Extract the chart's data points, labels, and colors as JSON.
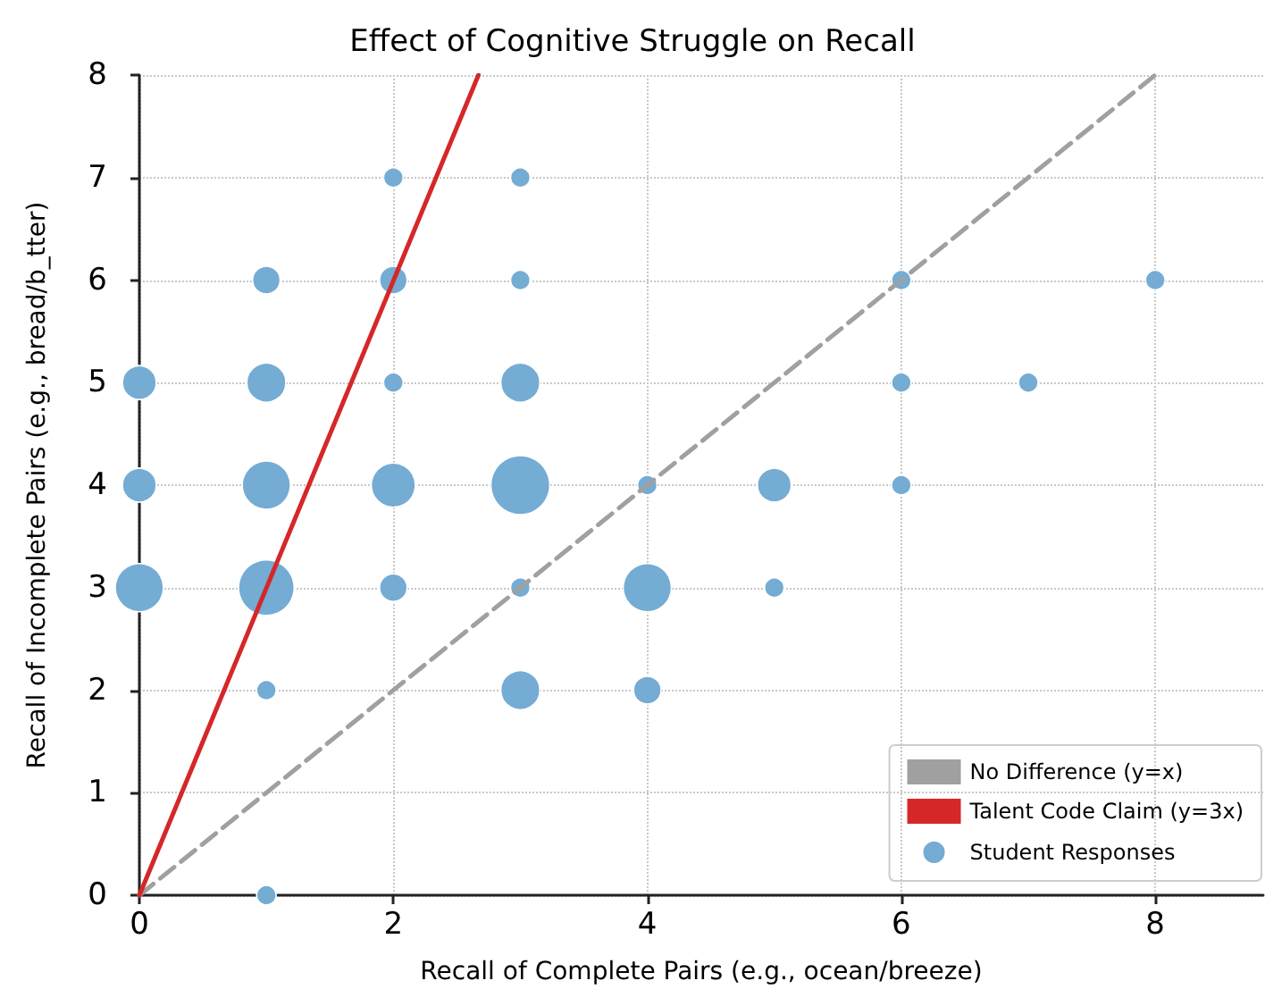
{
  "chart_data": {
    "type": "bubble",
    "title": "Effect of Cognitive Struggle on Recall",
    "xlabel": "Recall of Complete Pairs (e.g., ocean/breeze)",
    "ylabel": "Recall of Incomplete Pairs (e.g., bread/b_tter)",
    "xlim": [
      0,
      8.85
    ],
    "xticks": [
      0,
      2,
      4,
      6,
      8
    ],
    "ylim": [
      0,
      8
    ],
    "yticks": [
      0,
      1,
      2,
      3,
      4,
      5,
      6,
      7,
      8
    ],
    "grid": true,
    "legend": "bottom right",
    "series": [
      {
        "name": "No Difference (y=x)",
        "type": "line",
        "line_style": "dashed",
        "marker": "none",
        "color": "#a0a0a0",
        "x": [
          0,
          8
        ],
        "values": [
          0,
          8
        ]
      },
      {
        "name": "Talent Code Claim (y=3x)",
        "type": "line",
        "line_style": "solid",
        "marker": "none",
        "color": "#d62728",
        "x": [
          0,
          2.67
        ],
        "values": [
          0,
          8
        ]
      },
      {
        "name": "Student Responses",
        "marker": "circle",
        "color": "#74acd4",
        "x": [
          0,
          1,
          2,
          3,
          4,
          5,
          0,
          1,
          2,
          3,
          4,
          5,
          6,
          0,
          1,
          2,
          3,
          6,
          7,
          1,
          2,
          3,
          6,
          8,
          2,
          3,
          1,
          3,
          4,
          1
        ],
        "values": [
          3,
          3,
          3,
          3,
          3,
          3,
          4,
          4,
          4,
          4,
          4,
          4,
          4,
          5,
          5,
          5,
          5,
          5,
          5,
          6,
          6,
          6,
          6,
          6,
          7,
          7,
          2,
          2,
          2,
          0
        ],
        "sizes": [
          0.67,
          0.89,
          0.22,
          0.11,
          0.67,
          0.11,
          0.33,
          0.67,
          0.56,
          1,
          0.11,
          0.33,
          0.11,
          0.33,
          0.44,
          0.11,
          0.44,
          0.11,
          0.11,
          0.22,
          0.22,
          0.11,
          0.11,
          0.11,
          0.11,
          0.11,
          0.11,
          0.44,
          0.22,
          0.11
        ]
      }
    ]
  }
}
